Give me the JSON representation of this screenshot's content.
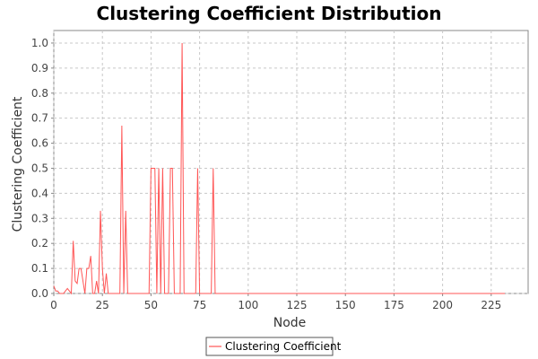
{
  "chart_data": {
    "type": "line",
    "title": "Clustering Coefficient Distribution",
    "xlabel": "Node",
    "ylabel": "Clustering Coefficient",
    "xlim": [
      0,
      244
    ],
    "ylim": [
      0,
      1.05
    ],
    "xticks": [
      0,
      25,
      50,
      75,
      100,
      125,
      150,
      175,
      200,
      225
    ],
    "yticks": [
      0.0,
      0.1,
      0.2,
      0.3,
      0.4,
      0.5,
      0.6,
      0.7,
      0.8,
      0.9,
      1.0
    ],
    "x_tick_labels": [
      "0",
      "25",
      "50",
      "75",
      "100",
      "125",
      "150",
      "175",
      "200",
      "225"
    ],
    "y_tick_labels": [
      "0.0",
      "0.1",
      "0.2",
      "0.3",
      "0.4",
      "0.5",
      "0.6",
      "0.7",
      "0.8",
      "0.9",
      "1.0"
    ],
    "grid": true,
    "legend_position": "bottom-center",
    "series": [
      {
        "name": "Clustering Coefficient",
        "color": "#ff5555",
        "x": [
          0,
          1,
          2,
          3,
          4,
          5,
          6,
          7,
          8,
          9,
          10,
          11,
          12,
          13,
          14,
          15,
          16,
          17,
          18,
          19,
          20,
          21,
          22,
          23,
          24,
          25,
          26,
          27,
          28,
          29,
          30,
          31,
          32,
          33,
          34,
          35,
          36,
          37,
          38,
          39,
          40,
          41,
          42,
          43,
          44,
          45,
          46,
          47,
          48,
          49,
          50,
          51,
          52,
          53,
          54,
          55,
          56,
          57,
          58,
          59,
          60,
          61,
          62,
          63,
          64,
          65,
          66,
          67,
          68,
          69,
          70,
          71,
          72,
          73,
          74,
          75,
          76,
          77,
          78,
          79,
          80,
          81,
          82,
          83,
          232
        ],
        "y": [
          0.03,
          0.01,
          0.01,
          0.0,
          0.0,
          0.0,
          0.01,
          0.02,
          0.01,
          0.0,
          0.21,
          0.05,
          0.04,
          0.1,
          0.1,
          0.05,
          0.0,
          0.1,
          0.1,
          0.15,
          0.0,
          0.0,
          0.05,
          0.0,
          0.33,
          0.1,
          0.0,
          0.08,
          0.0,
          0.0,
          0.0,
          0.0,
          0.0,
          0.0,
          0.0,
          0.67,
          0.0,
          0.33,
          0.0,
          0.0,
          0.0,
          0.0,
          0.0,
          0.0,
          0.0,
          0.0,
          0.0,
          0.0,
          0.0,
          0.0,
          0.5,
          0.5,
          0.5,
          0.0,
          0.5,
          0.0,
          0.5,
          0.0,
          0.0,
          0.0,
          0.5,
          0.5,
          0.0,
          0.0,
          0.0,
          0.0,
          1.0,
          0.0,
          0.0,
          0.0,
          0.0,
          0.0,
          0.0,
          0.0,
          0.5,
          0.0,
          0.0,
          0.0,
          0.0,
          0.0,
          0.0,
          0.0,
          0.5,
          0.0,
          0.0
        ]
      }
    ]
  }
}
